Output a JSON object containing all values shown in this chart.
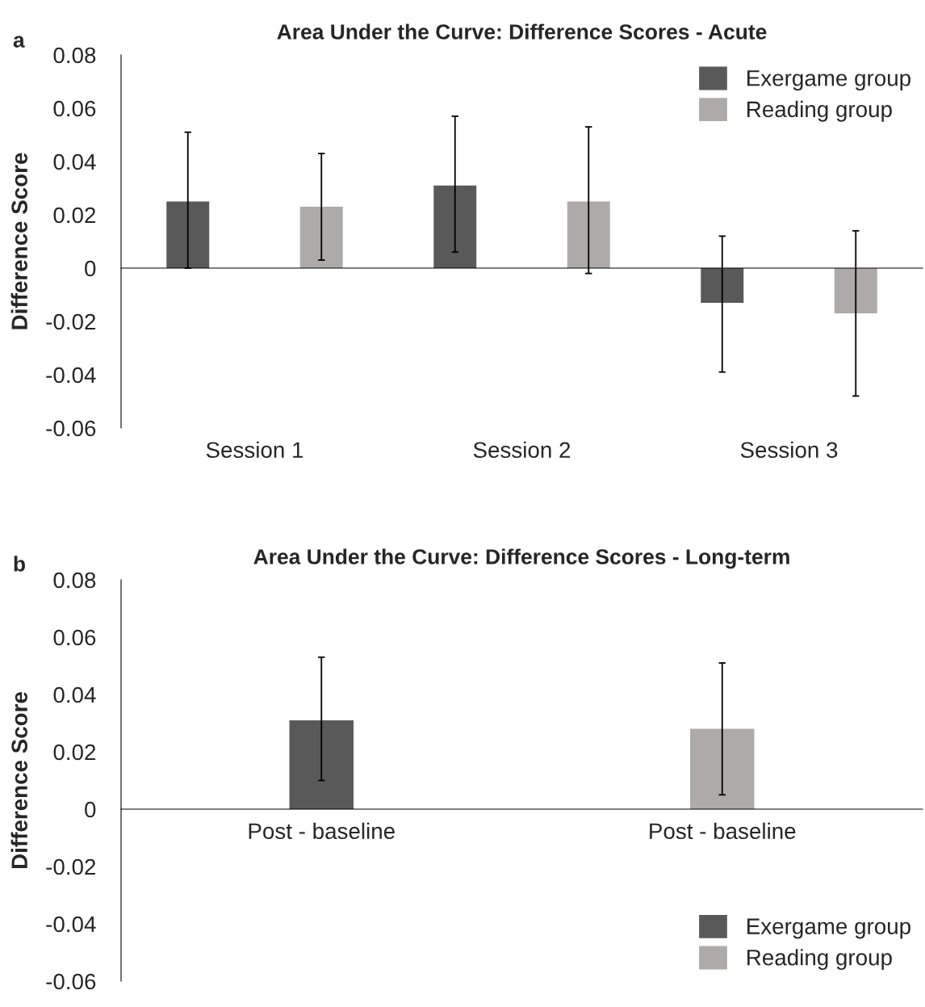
{
  "chart_data": [
    {
      "type": "bar",
      "title": "Area Under the Curve: Difference Scores - Acute",
      "ylabel": "Difference Score",
      "annotations": [
        "a"
      ],
      "categories": [
        "Session 1",
        "Session 2",
        "Session 3"
      ],
      "series": [
        {
          "name": "Exergame group",
          "color": "#595959",
          "values": [
            0.025,
            0.031,
            -0.013
          ],
          "errors": [
            [
              0.0,
              0.051
            ],
            [
              0.006,
              0.057
            ],
            [
              -0.039,
              0.012
            ]
          ]
        },
        {
          "name": "Reading group",
          "color": "#aeaaaa",
          "values": [
            0.023,
            0.025,
            -0.017
          ],
          "errors": [
            [
              0.003,
              0.043
            ],
            [
              -0.002,
              0.053
            ],
            [
              -0.048,
              0.014
            ]
          ]
        }
      ],
      "ylim": [
        -0.06,
        0.08
      ],
      "yticks": [
        {
          "value": -0.06,
          "label": "-0.06"
        },
        {
          "value": -0.04,
          "label": "-0.04"
        },
        {
          "value": -0.02,
          "label": "-0.02"
        },
        {
          "value": 0,
          "label": "0"
        },
        {
          "value": 0.02,
          "label": "0.02"
        },
        {
          "value": 0.04,
          "label": "0.04"
        },
        {
          "value": 0.06,
          "label": "0.06"
        },
        {
          "value": 0.08,
          "label": "0.08"
        }
      ],
      "legend": "top right"
    },
    {
      "type": "bar",
      "title": "Area Under the Curve: Difference Scores - Long-term",
      "ylabel": "Difference Score",
      "annotations": [
        "b"
      ],
      "categories": [
        "Post - baseline",
        "Post - baseline"
      ],
      "series": [
        {
          "name": "Exergame group",
          "color": "#595959",
          "values": [
            0.031,
            null
          ],
          "errors": [
            [
              0.01,
              0.053
            ],
            null
          ]
        },
        {
          "name": "Reading group",
          "color": "#aeaaaa",
          "values": [
            null,
            0.028
          ],
          "errors": [
            null,
            [
              0.005,
              0.051
            ]
          ]
        }
      ],
      "ylim": [
        -0.06,
        0.08
      ],
      "yticks": [
        {
          "value": -0.06,
          "label": "-0.06"
        },
        {
          "value": -0.04,
          "label": "-0.04"
        },
        {
          "value": -0.02,
          "label": "-0.02"
        },
        {
          "value": 0,
          "label": "0"
        },
        {
          "value": 0.02,
          "label": "0.02"
        },
        {
          "value": 0.04,
          "label": "0.04"
        },
        {
          "value": 0.06,
          "label": "0.06"
        },
        {
          "value": 0.08,
          "label": "0.08"
        }
      ],
      "legend": "bottom right"
    }
  ]
}
